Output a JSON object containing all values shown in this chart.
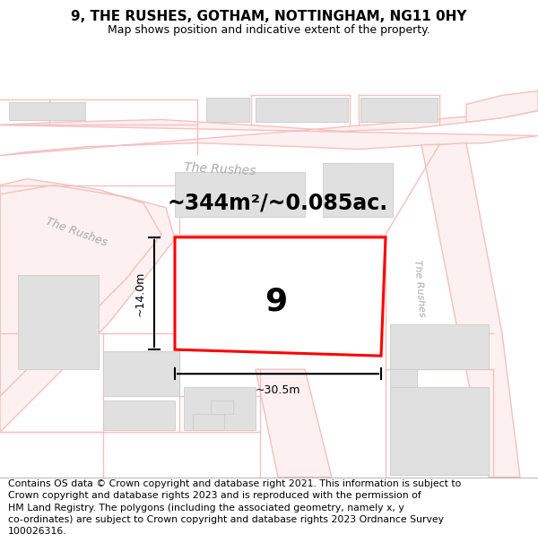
{
  "title": "9, THE RUSHES, GOTHAM, NOTTINGHAM, NG11 0HY",
  "subtitle": "Map shows position and indicative extent of the property.",
  "footer": "Contains OS data © Crown copyright and database right 2021. This information is subject to\nCrown copyright and database rights 2023 and is reproduced with the permission of\nHM Land Registry. The polygons (including the associated geometry, namely x, y\nco-ordinates) are subject to Crown copyright and database rights 2023 Ordnance Survey\n100026316.",
  "map_bg": "#ffffff",
  "road_color": "#f5c0c0",
  "road_lw": 1.0,
  "building_color": "#e0e0e0",
  "building_outline": "#cccccc",
  "highlight_color": "#ff0000",
  "highlight_fill": "#ffffff",
  "area_text": "~344m²/~0.085ac.",
  "number_text": "9",
  "dim_width": "~30.5m",
  "dim_height": "~14.0m",
  "road_label_color": "#aaaaaa",
  "road_label_top": "The Rushes",
  "road_label_left": "The Rushes",
  "road_label_right": "The Rushes",
  "title_fontsize": 11,
  "subtitle_fontsize": 9,
  "footer_fontsize": 7.8,
  "area_fontsize": 17,
  "number_fontsize": 26,
  "dim_fontsize": 9
}
